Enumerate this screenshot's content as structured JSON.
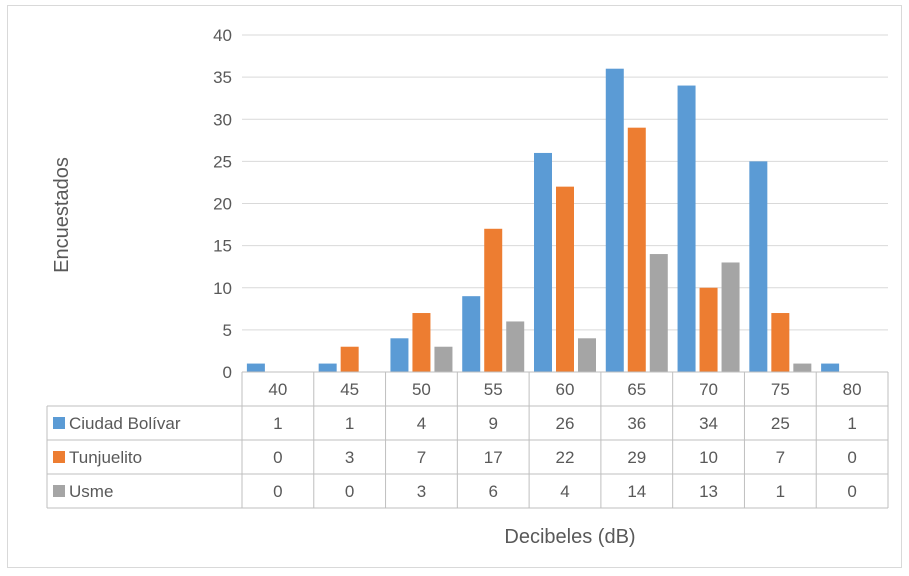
{
  "chart_data": {
    "type": "bar",
    "categories": [
      "40",
      "45",
      "50",
      "55",
      "60",
      "65",
      "70",
      "75",
      "80"
    ],
    "series": [
      {
        "name": "Ciudad Bolívar",
        "color": "#5b9bd5",
        "values": [
          1,
          1,
          4,
          9,
          26,
          36,
          34,
          25,
          1
        ]
      },
      {
        "name": "Tunjuelito",
        "color": "#ed7d31",
        "values": [
          0,
          3,
          7,
          17,
          22,
          29,
          10,
          7,
          0
        ]
      },
      {
        "name": "Usme",
        "color": "#a5a5a5",
        "values": [
          0,
          0,
          3,
          6,
          4,
          14,
          13,
          1,
          0
        ]
      }
    ],
    "xlabel": "Decibeles (dB)",
    "ylabel": "Encuestados",
    "ylim": [
      0,
      40
    ],
    "yticks": [
      0,
      5,
      10,
      15,
      20,
      25,
      30,
      35,
      40
    ],
    "grid": true,
    "legend": "data-table"
  }
}
